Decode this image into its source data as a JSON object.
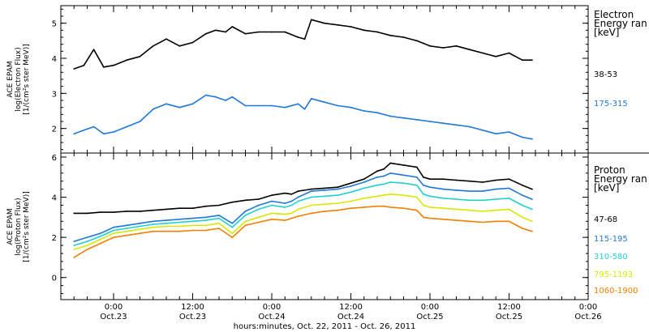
{
  "chart_data": [
    {
      "type": "line",
      "panel": "electron",
      "ylabel": [
        "ACE EPAM",
        "log(Electron Flux)",
        "[1/(cm²s ster MeV)]"
      ],
      "ylim": [
        1.3,
        5.5
      ],
      "yticks": [
        2,
        3,
        4,
        5
      ],
      "legend_title": [
        "Electron",
        "Energy ran",
        "[keV]"
      ],
      "series": [
        {
          "name": "38-53",
          "color": "#000000",
          "x": [
            -6,
            -4.5,
            -3,
            -1.5,
            0,
            2,
            4,
            6,
            8,
            10,
            12,
            14,
            15.5,
            17,
            18,
            20,
            22,
            24,
            26,
            28,
            29,
            30,
            32,
            34,
            36,
            38,
            40,
            42,
            44,
            46,
            48,
            50,
            52,
            54,
            56,
            58,
            60,
            62,
            63.5
          ],
          "values": [
            3.7,
            3.8,
            4.25,
            3.75,
            3.8,
            3.95,
            4.05,
            4.35,
            4.55,
            4.35,
            4.45,
            4.7,
            4.8,
            4.75,
            4.9,
            4.7,
            4.75,
            4.75,
            4.75,
            4.6,
            4.55,
            5.1,
            5.0,
            4.95,
            4.9,
            4.8,
            4.75,
            4.65,
            4.6,
            4.5,
            4.35,
            4.3,
            4.35,
            4.25,
            4.15,
            4.05,
            4.15,
            3.95,
            3.95
          ]
        },
        {
          "name": "175-315",
          "color": "#1f78d8",
          "x": [
            -6,
            -4.5,
            -3,
            -1.5,
            0,
            2,
            4,
            6,
            8,
            10,
            12,
            14,
            15.5,
            17,
            18,
            20,
            22,
            24,
            26,
            28,
            29,
            30,
            32,
            34,
            36,
            38,
            40,
            42,
            44,
            46,
            48,
            50,
            52,
            54,
            56,
            58,
            60,
            62,
            63.5
          ],
          "values": [
            1.85,
            1.95,
            2.05,
            1.85,
            1.9,
            2.05,
            2.2,
            2.55,
            2.7,
            2.6,
            2.7,
            2.95,
            2.9,
            2.8,
            2.9,
            2.65,
            2.65,
            2.65,
            2.6,
            2.7,
            2.55,
            2.85,
            2.75,
            2.65,
            2.6,
            2.5,
            2.45,
            2.35,
            2.3,
            2.25,
            2.2,
            2.15,
            2.1,
            2.05,
            1.95,
            1.85,
            1.9,
            1.75,
            1.7
          ]
        }
      ]
    },
    {
      "type": "line",
      "panel": "proton",
      "ylabel": [
        "ACE EPAM",
        "log(Proton Flux)",
        "[1/(cm²s ster MeV)]"
      ],
      "ylim": [
        -1.1,
        6.2
      ],
      "yticks": [
        0,
        2,
        4,
        6
      ],
      "legend_title": [
        "Proton",
        "Energy ran",
        "[keV]"
      ],
      "series": [
        {
          "name": "47-68",
          "color": "#000000",
          "x": [
            -6,
            -4,
            -2,
            0,
            2,
            4,
            6,
            8,
            10,
            12,
            14,
            16,
            18,
            20,
            22,
            24,
            26,
            27,
            28,
            30,
            32,
            34,
            36,
            38,
            40,
            41,
            42,
            44,
            46,
            47,
            48,
            50,
            52,
            54,
            56,
            58,
            60,
            62,
            63.5
          ],
          "values": [
            3.2,
            3.2,
            3.25,
            3.25,
            3.3,
            3.3,
            3.35,
            3.4,
            3.45,
            3.45,
            3.55,
            3.6,
            3.75,
            3.85,
            3.9,
            4.1,
            4.2,
            4.15,
            4.3,
            4.4,
            4.45,
            4.5,
            4.7,
            4.9,
            5.3,
            5.4,
            5.7,
            5.6,
            5.5,
            5.0,
            4.9,
            4.9,
            4.85,
            4.8,
            4.75,
            4.85,
            4.9,
            4.6,
            4.4
          ]
        },
        {
          "name": "115-195",
          "color": "#1f78d8",
          "x": [
            -6,
            -4,
            -2,
            0,
            2,
            4,
            6,
            8,
            10,
            12,
            14,
            16,
            18,
            20,
            22,
            24,
            26,
            27,
            28,
            30,
            32,
            34,
            36,
            38,
            40,
            41,
            42,
            44,
            46,
            47,
            48,
            50,
            52,
            54,
            56,
            58,
            60,
            62,
            63.5
          ],
          "values": [
            1.8,
            2.0,
            2.2,
            2.5,
            2.6,
            2.7,
            2.8,
            2.85,
            2.9,
            2.95,
            3.0,
            3.1,
            2.7,
            3.3,
            3.6,
            3.8,
            3.7,
            3.8,
            4.0,
            4.3,
            4.35,
            4.4,
            4.55,
            4.75,
            5.0,
            5.05,
            5.2,
            5.1,
            5.0,
            4.6,
            4.5,
            4.4,
            4.35,
            4.3,
            4.3,
            4.4,
            4.45,
            4.1,
            3.9
          ]
        },
        {
          "name": "310-580",
          "color": "#1fd0d0",
          "x": [
            -6,
            -4,
            -2,
            0,
            2,
            4,
            6,
            8,
            10,
            12,
            14,
            16,
            18,
            20,
            22,
            24,
            26,
            27,
            28,
            30,
            32,
            34,
            36,
            38,
            40,
            41,
            42,
            44,
            46,
            47,
            48,
            50,
            52,
            54,
            56,
            58,
            60,
            62,
            63.5
          ],
          "values": [
            1.6,
            1.8,
            2.05,
            2.35,
            2.45,
            2.55,
            2.65,
            2.7,
            2.75,
            2.8,
            2.85,
            2.95,
            2.5,
            3.1,
            3.4,
            3.6,
            3.5,
            3.6,
            3.8,
            4.0,
            4.05,
            4.1,
            4.25,
            4.45,
            4.6,
            4.65,
            4.75,
            4.7,
            4.6,
            4.15,
            4.05,
            3.95,
            3.9,
            3.85,
            3.85,
            3.9,
            3.95,
            3.6,
            3.4
          ]
        },
        {
          "name": "795-1193",
          "color": "#d8e800",
          "x": [
            -6,
            -4,
            -2,
            0,
            2,
            4,
            6,
            8,
            10,
            12,
            14,
            16,
            18,
            20,
            22,
            24,
            26,
            27,
            28,
            30,
            32,
            34,
            36,
            38,
            40,
            41,
            42,
            44,
            46,
            47,
            48,
            50,
            52,
            54,
            56,
            58,
            60,
            62,
            63.5
          ],
          "values": [
            1.4,
            1.6,
            1.9,
            2.2,
            2.3,
            2.4,
            2.5,
            2.55,
            2.55,
            2.6,
            2.6,
            2.7,
            2.2,
            2.8,
            3.0,
            3.2,
            3.15,
            3.2,
            3.4,
            3.6,
            3.65,
            3.7,
            3.8,
            3.95,
            4.05,
            4.1,
            4.15,
            4.1,
            4.0,
            3.6,
            3.5,
            3.45,
            3.4,
            3.35,
            3.3,
            3.35,
            3.4,
            3.0,
            2.8
          ]
        },
        {
          "name": "1060-1900",
          "color": "#f08000",
          "x": [
            -6,
            -4,
            -2,
            0,
            2,
            4,
            6,
            8,
            10,
            12,
            14,
            16,
            18,
            20,
            22,
            24,
            26,
            27,
            28,
            30,
            32,
            34,
            36,
            38,
            40,
            41,
            42,
            44,
            46,
            47,
            48,
            50,
            52,
            54,
            56,
            58,
            60,
            62,
            63.5
          ],
          "values": [
            1.0,
            1.4,
            1.7,
            2.0,
            2.1,
            2.2,
            2.3,
            2.3,
            2.3,
            2.35,
            2.35,
            2.45,
            2.0,
            2.6,
            2.75,
            2.9,
            2.85,
            2.95,
            3.05,
            3.2,
            3.3,
            3.35,
            3.45,
            3.5,
            3.55,
            3.55,
            3.5,
            3.45,
            3.35,
            3.0,
            2.95,
            2.9,
            2.85,
            2.8,
            2.75,
            2.8,
            2.8,
            2.45,
            2.3
          ]
        }
      ]
    }
  ],
  "xaxis": {
    "range_hours": [
      -8,
      72
    ],
    "ticks": [
      {
        "h": 0,
        "time": "0:00",
        "date": "Oct.23"
      },
      {
        "h": 12,
        "time": "12:00",
        "date": "Oct.23"
      },
      {
        "h": 24,
        "time": "0:00",
        "date": "Oct.24"
      },
      {
        "h": 36,
        "time": "12:00",
        "date": "Oct.24"
      },
      {
        "h": 48,
        "time": "0:00",
        "date": "Oct.25"
      },
      {
        "h": 60,
        "time": "12:00",
        "date": "Oct.25"
      },
      {
        "h": 72,
        "time": "0:00",
        "date": "Oct.26"
      }
    ],
    "minor_step_hours": 2,
    "label": "hours:minutes, Oct. 22, 2011 - Oct. 26, 2011"
  }
}
